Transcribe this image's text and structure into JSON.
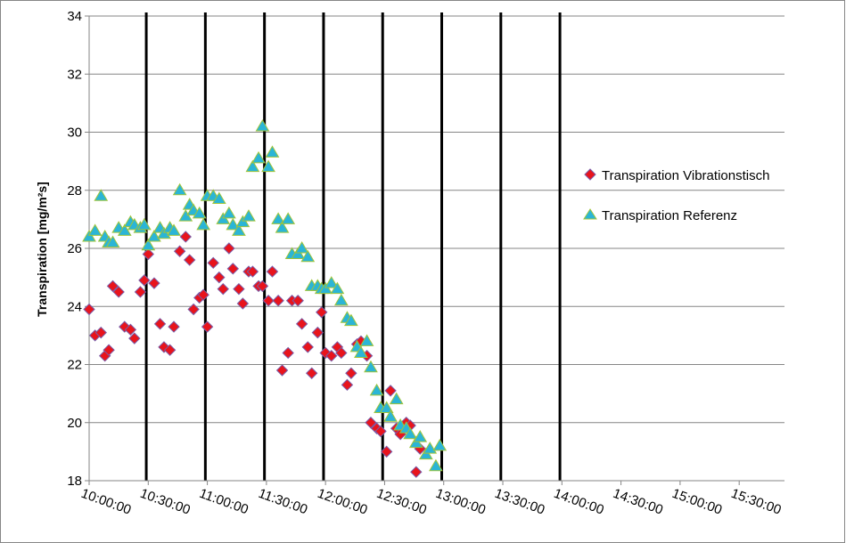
{
  "chart_data": {
    "type": "scatter",
    "title": "",
    "xlabel": "",
    "ylabel": "Transpiration [mg/m²s]",
    "ylim": [
      18,
      34
    ],
    "yticks": [
      18,
      20,
      22,
      24,
      26,
      28,
      30,
      32,
      34
    ],
    "xlim": [
      "10:00:00",
      "15:53:00"
    ],
    "xticks": [
      "10:00:00",
      "10:30:00",
      "11:00:00",
      "11:30:00",
      "12:00:00",
      "12:30:00",
      "13:00:00",
      "13:30:00",
      "14:00:00",
      "14:30:00",
      "15:00:00",
      "15:30:00"
    ],
    "grid": "horizontal",
    "legend_position": "right",
    "colors": {
      "vibration": "#e8141c",
      "vibration_edge": "#7a5ca8",
      "reference": "#2bb5d6",
      "reference_edge": "#9ec43a",
      "grid": "#868686",
      "border": "#868686",
      "vline": "#000000"
    },
    "vertical_lines": [
      "10:29:00",
      "10:59:00",
      "11:29:00",
      "11:59:00",
      "12:29:00",
      "12:59:00",
      "13:29:00",
      "13:59:00"
    ],
    "series": [
      {
        "name": "Transpiration Vibrationstisch",
        "marker": "diamond",
        "points": [
          [
            "10:00:00",
            23.9
          ],
          [
            "10:03:00",
            23.0
          ],
          [
            "10:06:00",
            23.1
          ],
          [
            "10:08:00",
            22.3
          ],
          [
            "10:10:00",
            22.5
          ],
          [
            "10:12:00",
            24.7
          ],
          [
            "10:15:00",
            24.5
          ],
          [
            "10:18:00",
            23.3
          ],
          [
            "10:21:00",
            23.2
          ],
          [
            "10:23:00",
            22.9
          ],
          [
            "10:26:00",
            24.5
          ],
          [
            "10:28:00",
            24.9
          ],
          [
            "10:30:00",
            25.8
          ],
          [
            "10:33:00",
            24.8
          ],
          [
            "10:36:00",
            23.4
          ],
          [
            "10:38:00",
            22.6
          ],
          [
            "10:41:00",
            22.5
          ],
          [
            "10:43:00",
            23.3
          ],
          [
            "10:46:00",
            25.9
          ],
          [
            "10:49:00",
            26.4
          ],
          [
            "10:51:00",
            25.6
          ],
          [
            "10:53:00",
            23.9
          ],
          [
            "10:56:00",
            24.3
          ],
          [
            "10:58:00",
            24.4
          ],
          [
            "11:00:00",
            23.3
          ],
          [
            "11:03:00",
            25.5
          ],
          [
            "11:06:00",
            25.0
          ],
          [
            "11:08:00",
            24.6
          ],
          [
            "11:11:00",
            26.0
          ],
          [
            "11:13:00",
            25.3
          ],
          [
            "11:16:00",
            24.6
          ],
          [
            "11:18:00",
            24.1
          ],
          [
            "11:21:00",
            25.2
          ],
          [
            "11:23:00",
            25.2
          ],
          [
            "11:26:00",
            24.7
          ],
          [
            "11:28:00",
            24.7
          ],
          [
            "11:31:00",
            24.2
          ],
          [
            "11:33:00",
            25.2
          ],
          [
            "11:36:00",
            24.2
          ],
          [
            "11:38:00",
            21.8
          ],
          [
            "11:41:00",
            22.4
          ],
          [
            "11:43:00",
            24.2
          ],
          [
            "11:46:00",
            24.2
          ],
          [
            "11:48:00",
            23.4
          ],
          [
            "11:51:00",
            22.6
          ],
          [
            "11:53:00",
            21.7
          ],
          [
            "11:56:00",
            23.1
          ],
          [
            "11:58:00",
            23.8
          ],
          [
            "12:00:00",
            22.4
          ],
          [
            "12:03:00",
            22.3
          ],
          [
            "12:06:00",
            22.6
          ],
          [
            "12:08:00",
            22.4
          ],
          [
            "12:11:00",
            21.3
          ],
          [
            "12:13:00",
            21.7
          ],
          [
            "12:16:00",
            22.7
          ],
          [
            "12:18:00",
            22.8
          ],
          [
            "12:21:00",
            22.3
          ],
          [
            "12:23:00",
            20.0
          ],
          [
            "12:26:00",
            19.8
          ],
          [
            "12:28:00",
            19.7
          ],
          [
            "12:31:00",
            19.0
          ],
          [
            "12:33:00",
            21.1
          ],
          [
            "12:36:00",
            19.8
          ],
          [
            "12:38:00",
            19.6
          ],
          [
            "12:41:00",
            20.0
          ],
          [
            "12:43:00",
            19.9
          ],
          [
            "12:46:00",
            18.3
          ],
          [
            "12:48:00",
            19.1
          ]
        ]
      },
      {
        "name": "Transpiration Referenz",
        "marker": "triangle",
        "points": [
          [
            "10:00:00",
            26.4
          ],
          [
            "10:03:00",
            26.6
          ],
          [
            "10:06:00",
            27.8
          ],
          [
            "10:08:00",
            26.4
          ],
          [
            "10:10:00",
            26.2
          ],
          [
            "10:12:00",
            26.2
          ],
          [
            "10:15:00",
            26.7
          ],
          [
            "10:18:00",
            26.6
          ],
          [
            "10:21:00",
            26.9
          ],
          [
            "10:23:00",
            26.8
          ],
          [
            "10:26:00",
            26.7
          ],
          [
            "10:28:00",
            26.8
          ],
          [
            "10:30:00",
            26.1
          ],
          [
            "10:33:00",
            26.4
          ],
          [
            "10:36:00",
            26.7
          ],
          [
            "10:38:00",
            26.5
          ],
          [
            "10:41:00",
            26.7
          ],
          [
            "10:43:00",
            26.6
          ],
          [
            "10:46:00",
            28.0
          ],
          [
            "10:49:00",
            27.1
          ],
          [
            "10:51:00",
            27.5
          ],
          [
            "10:53:00",
            27.3
          ],
          [
            "10:56:00",
            27.2
          ],
          [
            "10:58:00",
            26.8
          ],
          [
            "11:00:00",
            27.8
          ],
          [
            "11:03:00",
            27.8
          ],
          [
            "11:06:00",
            27.7
          ],
          [
            "11:08:00",
            27.0
          ],
          [
            "11:11:00",
            27.2
          ],
          [
            "11:13:00",
            26.8
          ],
          [
            "11:16:00",
            26.6
          ],
          [
            "11:18:00",
            26.9
          ],
          [
            "11:21:00",
            27.1
          ],
          [
            "11:23:00",
            28.8
          ],
          [
            "11:26:00",
            29.1
          ],
          [
            "11:28:00",
            30.2
          ],
          [
            "11:31:00",
            28.8
          ],
          [
            "11:33:00",
            29.3
          ],
          [
            "11:36:00",
            27.0
          ],
          [
            "11:38:00",
            26.7
          ],
          [
            "11:41:00",
            27.0
          ],
          [
            "11:43:00",
            25.8
          ],
          [
            "11:46:00",
            25.8
          ],
          [
            "11:48:00",
            26.0
          ],
          [
            "11:51:00",
            25.7
          ],
          [
            "11:53:00",
            24.7
          ],
          [
            "11:56:00",
            24.7
          ],
          [
            "11:58:00",
            24.6
          ],
          [
            "12:00:00",
            24.6
          ],
          [
            "12:03:00",
            24.8
          ],
          [
            "12:06:00",
            24.6
          ],
          [
            "12:08:00",
            24.2
          ],
          [
            "12:11:00",
            23.6
          ],
          [
            "12:13:00",
            23.5
          ],
          [
            "12:16:00",
            22.6
          ],
          [
            "12:18:00",
            22.4
          ],
          [
            "12:21:00",
            22.8
          ],
          [
            "12:23:00",
            21.9
          ],
          [
            "12:26:00",
            21.1
          ],
          [
            "12:28:00",
            20.5
          ],
          [
            "12:31:00",
            20.5
          ],
          [
            "12:33:00",
            20.2
          ],
          [
            "12:36:00",
            20.8
          ],
          [
            "12:38:00",
            19.9
          ],
          [
            "12:41:00",
            19.8
          ],
          [
            "12:43:00",
            19.6
          ],
          [
            "12:46:00",
            19.3
          ],
          [
            "12:48:00",
            19.5
          ],
          [
            "12:51:00",
            18.9
          ],
          [
            "12:53:00",
            19.1
          ],
          [
            "12:56:00",
            18.5
          ],
          [
            "12:58:00",
            19.2
          ]
        ]
      }
    ]
  }
}
